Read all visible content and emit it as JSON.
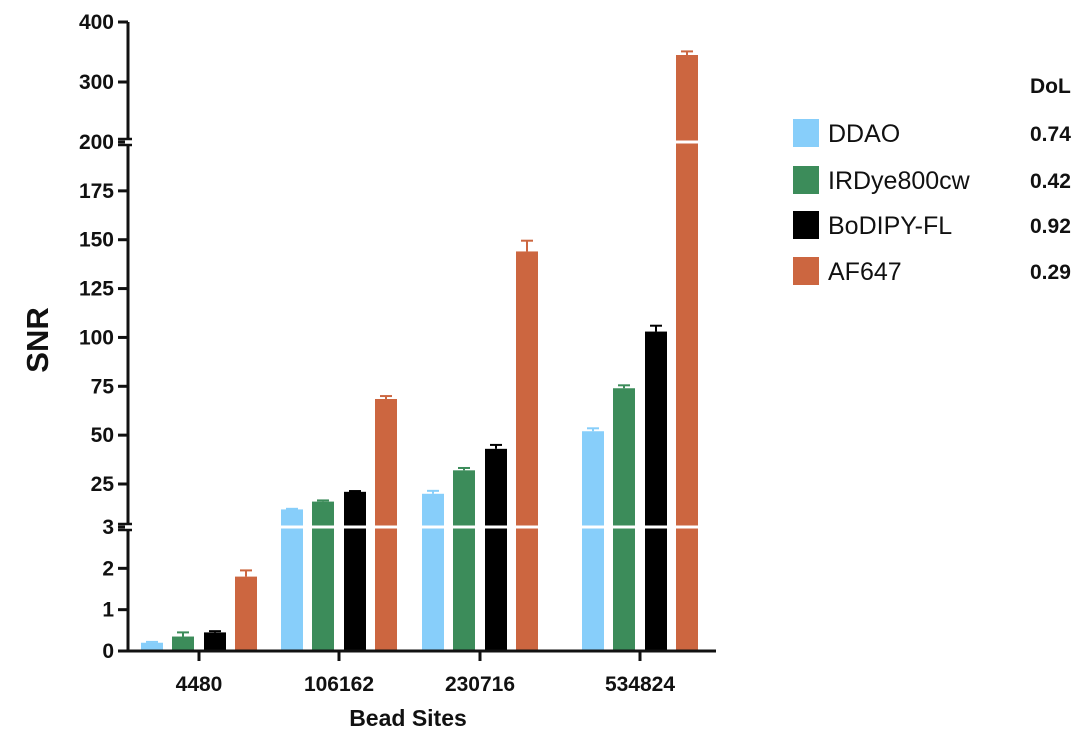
{
  "chart_data": {
    "type": "bar",
    "xlabel": "Bead Sites",
    "ylabel": "SNR",
    "categories": [
      "4480",
      "106162",
      "230716",
      "534824"
    ],
    "y_axis_segments": [
      {
        "range": [
          0,
          3
        ],
        "ticks": [
          "0",
          "1",
          "2",
          "3"
        ]
      },
      {
        "range": [
          3,
          200
        ],
        "ticks": [
          "25",
          "50",
          "75",
          "100",
          "125",
          "150",
          "175",
          "200"
        ]
      },
      {
        "range": [
          200,
          400
        ],
        "ticks": [
          "300",
          "400"
        ]
      }
    ],
    "axis_breaks": [
      3,
      200
    ],
    "legend_header": "DoL",
    "series": [
      {
        "name": "DDAO",
        "color": "#87CEFA",
        "dol": "0.74",
        "values": [
          0.2,
          12,
          20,
          52
        ],
        "errors": [
          0.02,
          0.3,
          1.5,
          1.5
        ]
      },
      {
        "name": "IRDye800cw",
        "color": "#3C8C5A",
        "dol": "0.42",
        "values": [
          0.35,
          16,
          32,
          74
        ],
        "errors": [
          0.1,
          0.6,
          1.2,
          1.5
        ]
      },
      {
        "name": "BoDIPY-FL",
        "color": "#000000",
        "dol": "0.92",
        "values": [
          0.45,
          21,
          43,
          103
        ],
        "errors": [
          0.03,
          0.4,
          2,
          3
        ]
      },
      {
        "name": "AF647",
        "color": "#CC6640",
        "dol": "0.29",
        "values": [
          1.8,
          68.5,
          144,
          345
        ],
        "errors": [
          0.15,
          1.5,
          5.5,
          6
        ]
      }
    ]
  }
}
